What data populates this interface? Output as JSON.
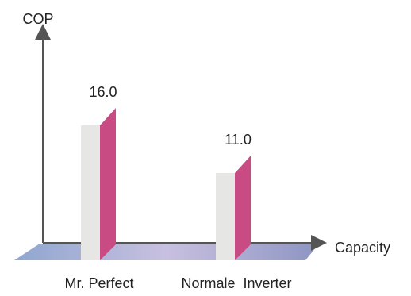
{
  "chart_data": {
    "type": "bar",
    "categories": [
      "Mr. Perfect",
      "Normale  Inverter"
    ],
    "values": [
      16.0,
      11.0
    ],
    "value_labels": [
      "16.0",
      "11.0"
    ],
    "xlabel": "Capacity",
    "ylabel": "COP",
    "ylim": [
      0,
      20
    ],
    "grid": false,
    "legend": "none",
    "style": "3d-bars",
    "colors": {
      "bar_front": "#e6e6e4",
      "bar_side": "#c94b84",
      "bar_top": "#ffffff",
      "floor_left": "#8fa6cf",
      "floor_mid": "#c8c0e0",
      "floor_right": "#8d95c2",
      "axis": "#555555"
    }
  }
}
